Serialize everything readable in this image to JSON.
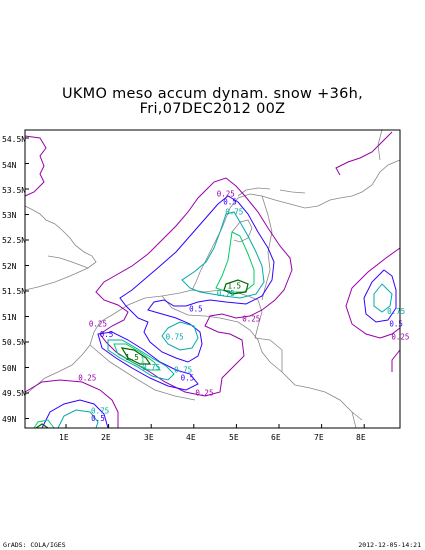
{
  "title": {
    "line1": "UKMO meso accum dynam. snow +36h,",
    "line2": "Fri,07DEC2012 00Z"
  },
  "axes": {
    "lat_labels": [
      "54.5N",
      "54N",
      "53.5N",
      "53N",
      "52.5N",
      "52N",
      "51.5N",
      "51N",
      "50.5N",
      "50N",
      "49.5N",
      "49N"
    ],
    "lon_labels": [
      "1E",
      "2E",
      "3E",
      "4E",
      "5E",
      "6E",
      "7E",
      "8E"
    ]
  },
  "contour_labels": [
    {
      "text": "0.25",
      "lon": 4.75,
      "lat": 53.35
    },
    {
      "text": "0.5",
      "lon": 4.85,
      "lat": 53.2
    },
    {
      "text": "0.75",
      "lon": 4.95,
      "lat": 53.0
    },
    {
      "text": "1.5",
      "lon": 4.95,
      "lat": 51.55
    },
    {
      "text": "0.75",
      "lon": 4.75,
      "lat": 51.4
    },
    {
      "text": "0.5",
      "lon": 4.05,
      "lat": 51.1
    },
    {
      "text": "0.25",
      "lon": 5.35,
      "lat": 50.9
    },
    {
      "text": "0.75",
      "lon": 3.55,
      "lat": 50.55
    },
    {
      "text": "0.25",
      "lon": 1.75,
      "lat": 50.8
    },
    {
      "text": "0.5",
      "lon": 1.95,
      "lat": 50.6
    },
    {
      "text": "1.5",
      "lon": 2.55,
      "lat": 50.15
    },
    {
      "text": "1",
      "lon": 2.8,
      "lat": 50.1
    },
    {
      "text": "0.75",
      "lon": 3.0,
      "lat": 49.95
    },
    {
      "text": "0.75",
      "lon": 3.75,
      "lat": 49.9
    },
    {
      "text": "0.5",
      "lon": 3.85,
      "lat": 49.75
    },
    {
      "text": "0.25",
      "lon": 1.5,
      "lat": 49.75
    },
    {
      "text": "0.25",
      "lon": 4.25,
      "lat": 49.45
    },
    {
      "text": "0.75",
      "lon": 1.8,
      "lat": 49.1
    },
    {
      "text": "0.5",
      "lon": 1.75,
      "lat": 48.95
    },
    {
      "text": "0.75",
      "lon": 8.75,
      "lat": 51.05
    },
    {
      "text": "0.5",
      "lon": 8.75,
      "lat": 50.8
    },
    {
      "text": "0.25",
      "lon": 8.85,
      "lat": 50.55
    }
  ],
  "colors": {
    "c025": "#9900aa",
    "c05": "#3300ff",
    "c075": "#00aaaa",
    "c1": "#00cc66",
    "c15": "#006600",
    "coast": "#888888"
  },
  "footer": {
    "left": "GrADS: COLA/IGES",
    "right": "2012-12-05-14:21"
  }
}
